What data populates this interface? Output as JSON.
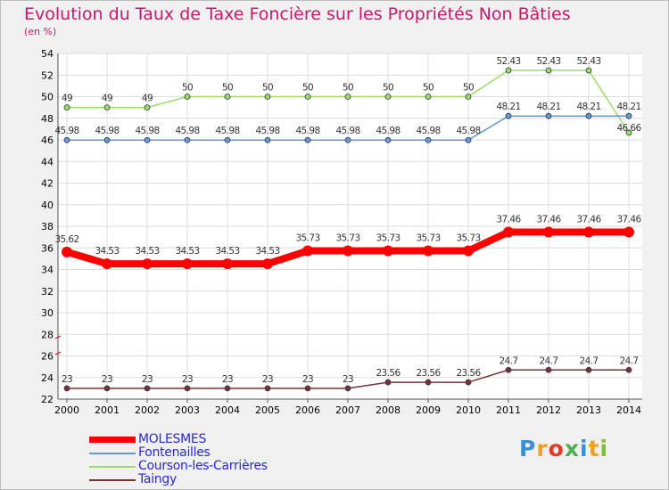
{
  "chart_data": {
    "type": "line",
    "title": "Evolution du Taux de Taxe Foncière sur les Propriétés Non Bâties",
    "subtitle": "(en %)",
    "x": [
      "2000",
      "2001",
      "2002",
      "2003",
      "2004",
      "2005",
      "2006",
      "2007",
      "2008",
      "2009",
      "2010",
      "2011",
      "2012",
      "2013",
      "2014"
    ],
    "ylim": [
      22,
      54
    ],
    "yticks": [
      22,
      24,
      26,
      28,
      30,
      32,
      34,
      36,
      38,
      40,
      42,
      44,
      46,
      48,
      50,
      52,
      54
    ],
    "grid": true,
    "legend_position": "bottom-left",
    "series": [
      {
        "name": "MOLESMES",
        "color": "#ff0000",
        "values": [
          35.62,
          34.53,
          34.53,
          34.53,
          34.53,
          34.53,
          35.73,
          35.73,
          35.73,
          35.73,
          35.73,
          37.46,
          37.46,
          37.46,
          37.46
        ],
        "labels": [
          "35.62",
          "34.53",
          "34.53",
          "34.53",
          "34.53",
          "34.53",
          "35.73",
          "35.73",
          "35.73",
          "35.73",
          "35.73",
          "37.46",
          "37.46",
          "37.46",
          "37.46"
        ]
      },
      {
        "name": "Fontenailles",
        "color": "#6699cc",
        "values": [
          45.98,
          45.98,
          45.98,
          45.98,
          45.98,
          45.98,
          45.98,
          45.98,
          45.98,
          45.98,
          45.98,
          48.21,
          48.21,
          48.21,
          48.21
        ],
        "labels": [
          "45.98",
          "45.98",
          "45.98",
          "45.98",
          "45.98",
          "45.98",
          "45.98",
          "45.98",
          "45.98",
          "45.98",
          "45.98",
          "48.21",
          "48.21",
          "48.21",
          "48.21"
        ]
      },
      {
        "name": "Courson-les-Carrières",
        "color": "#99dd66",
        "values": [
          49,
          49,
          49,
          50,
          50,
          50,
          50,
          50,
          50,
          50,
          50,
          52.43,
          52.43,
          52.43,
          46.66
        ],
        "labels": [
          "49",
          "49",
          "49",
          "50",
          "50",
          "50",
          "50",
          "50",
          "50",
          "50",
          "50",
          "52.43",
          "52.43",
          "52.43",
          "46.66"
        ]
      },
      {
        "name": "Taingy",
        "color": "#773333",
        "values": [
          23,
          23,
          23,
          23,
          23,
          23,
          23,
          23,
          23.56,
          23.56,
          23.56,
          24.7,
          24.7,
          24.7,
          24.7
        ],
        "labels": [
          "23",
          "23",
          "23",
          "23",
          "23",
          "23",
          "23",
          "23",
          "23.56",
          "23.56",
          "23.56",
          "24.7",
          "24.7",
          "24.7",
          "24.7"
        ]
      }
    ]
  },
  "logo": {
    "text": [
      "P",
      "r",
      "o",
      "x",
      "i",
      "t",
      "i"
    ],
    "colors": [
      "#3b8fd6",
      "#f0a020",
      "#e03a2a",
      "#4caf50",
      "#3b8fd6",
      "#f0a020",
      "#7fbf3f"
    ]
  }
}
